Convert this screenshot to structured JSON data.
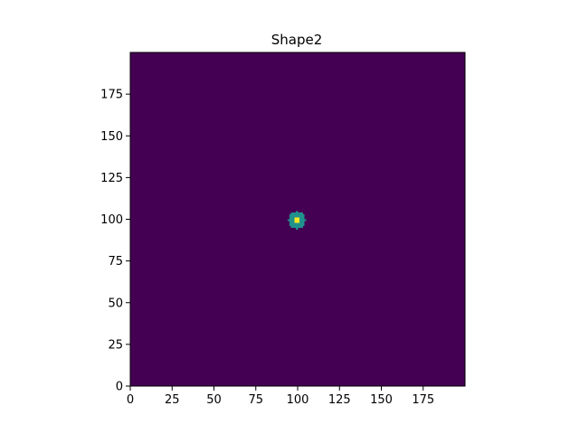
{
  "chart_data": {
    "type": "heatmap",
    "title": "Shape2",
    "xlabel": "",
    "ylabel": "",
    "xlim": [
      0,
      200
    ],
    "ylim": [
      0,
      200
    ],
    "origin": "lower",
    "grid": false,
    "colormap": "viridis",
    "x_ticks": [
      0,
      25,
      50,
      75,
      100,
      125,
      150,
      175
    ],
    "y_ticks": [
      0,
      25,
      50,
      75,
      100,
      125,
      150,
      175
    ],
    "x_tick_labels": [
      "0",
      "25",
      "50",
      "75",
      "100",
      "125",
      "150",
      "175"
    ],
    "y_tick_labels": [
      "0",
      "25",
      "50",
      "75",
      "100",
      "125",
      "150",
      "175"
    ],
    "background_value": 0,
    "background_color": "#440154",
    "features": [
      {
        "shape": "disc",
        "center": [
          99.5,
          99.5
        ],
        "radius": 5,
        "value": 0.5,
        "color": "#21918c"
      },
      {
        "shape": "square",
        "center": [
          99.5,
          99.5
        ],
        "half_size": 1,
        "value": 1.0,
        "color": "#fde725"
      }
    ]
  }
}
